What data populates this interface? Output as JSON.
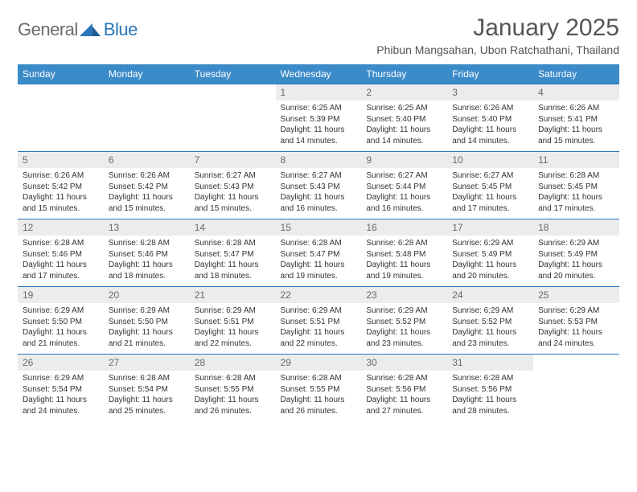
{
  "logo": {
    "general": "General",
    "blue": "Blue"
  },
  "title": "January 2025",
  "location": "Phibun Mangsahan, Ubon Ratchathani, Thailand",
  "colors": {
    "header_bg": "#3b8bc9",
    "header_text": "#ffffff",
    "daynum_bg": "#ececec",
    "daynum_text": "#6a6a6a",
    "border": "#2a76b8",
    "logo_gray": "#6b6b6b",
    "logo_blue": "#2a76b8",
    "body_text": "#333333"
  },
  "day_names": [
    "Sunday",
    "Monday",
    "Tuesday",
    "Wednesday",
    "Thursday",
    "Friday",
    "Saturday"
  ],
  "weeks": [
    [
      null,
      null,
      null,
      {
        "n": "1",
        "sr": "6:25 AM",
        "ss": "5:39 PM",
        "dl": "11 hours and 14 minutes."
      },
      {
        "n": "2",
        "sr": "6:25 AM",
        "ss": "5:40 PM",
        "dl": "11 hours and 14 minutes."
      },
      {
        "n": "3",
        "sr": "6:26 AM",
        "ss": "5:40 PM",
        "dl": "11 hours and 14 minutes."
      },
      {
        "n": "4",
        "sr": "6:26 AM",
        "ss": "5:41 PM",
        "dl": "11 hours and 15 minutes."
      }
    ],
    [
      {
        "n": "5",
        "sr": "6:26 AM",
        "ss": "5:42 PM",
        "dl": "11 hours and 15 minutes."
      },
      {
        "n": "6",
        "sr": "6:26 AM",
        "ss": "5:42 PM",
        "dl": "11 hours and 15 minutes."
      },
      {
        "n": "7",
        "sr": "6:27 AM",
        "ss": "5:43 PM",
        "dl": "11 hours and 15 minutes."
      },
      {
        "n": "8",
        "sr": "6:27 AM",
        "ss": "5:43 PM",
        "dl": "11 hours and 16 minutes."
      },
      {
        "n": "9",
        "sr": "6:27 AM",
        "ss": "5:44 PM",
        "dl": "11 hours and 16 minutes."
      },
      {
        "n": "10",
        "sr": "6:27 AM",
        "ss": "5:45 PM",
        "dl": "11 hours and 17 minutes."
      },
      {
        "n": "11",
        "sr": "6:28 AM",
        "ss": "5:45 PM",
        "dl": "11 hours and 17 minutes."
      }
    ],
    [
      {
        "n": "12",
        "sr": "6:28 AM",
        "ss": "5:46 PM",
        "dl": "11 hours and 17 minutes."
      },
      {
        "n": "13",
        "sr": "6:28 AM",
        "ss": "5:46 PM",
        "dl": "11 hours and 18 minutes."
      },
      {
        "n": "14",
        "sr": "6:28 AM",
        "ss": "5:47 PM",
        "dl": "11 hours and 18 minutes."
      },
      {
        "n": "15",
        "sr": "6:28 AM",
        "ss": "5:47 PM",
        "dl": "11 hours and 19 minutes."
      },
      {
        "n": "16",
        "sr": "6:28 AM",
        "ss": "5:48 PM",
        "dl": "11 hours and 19 minutes."
      },
      {
        "n": "17",
        "sr": "6:29 AM",
        "ss": "5:49 PM",
        "dl": "11 hours and 20 minutes."
      },
      {
        "n": "18",
        "sr": "6:29 AM",
        "ss": "5:49 PM",
        "dl": "11 hours and 20 minutes."
      }
    ],
    [
      {
        "n": "19",
        "sr": "6:29 AM",
        "ss": "5:50 PM",
        "dl": "11 hours and 21 minutes."
      },
      {
        "n": "20",
        "sr": "6:29 AM",
        "ss": "5:50 PM",
        "dl": "11 hours and 21 minutes."
      },
      {
        "n": "21",
        "sr": "6:29 AM",
        "ss": "5:51 PM",
        "dl": "11 hours and 22 minutes."
      },
      {
        "n": "22",
        "sr": "6:29 AM",
        "ss": "5:51 PM",
        "dl": "11 hours and 22 minutes."
      },
      {
        "n": "23",
        "sr": "6:29 AM",
        "ss": "5:52 PM",
        "dl": "11 hours and 23 minutes."
      },
      {
        "n": "24",
        "sr": "6:29 AM",
        "ss": "5:52 PM",
        "dl": "11 hours and 23 minutes."
      },
      {
        "n": "25",
        "sr": "6:29 AM",
        "ss": "5:53 PM",
        "dl": "11 hours and 24 minutes."
      }
    ],
    [
      {
        "n": "26",
        "sr": "6:29 AM",
        "ss": "5:54 PM",
        "dl": "11 hours and 24 minutes."
      },
      {
        "n": "27",
        "sr": "6:28 AM",
        "ss": "5:54 PM",
        "dl": "11 hours and 25 minutes."
      },
      {
        "n": "28",
        "sr": "6:28 AM",
        "ss": "5:55 PM",
        "dl": "11 hours and 26 minutes."
      },
      {
        "n": "29",
        "sr": "6:28 AM",
        "ss": "5:55 PM",
        "dl": "11 hours and 26 minutes."
      },
      {
        "n": "30",
        "sr": "6:28 AM",
        "ss": "5:56 PM",
        "dl": "11 hours and 27 minutes."
      },
      {
        "n": "31",
        "sr": "6:28 AM",
        "ss": "5:56 PM",
        "dl": "11 hours and 28 minutes."
      },
      null
    ]
  ],
  "labels": {
    "sunrise": "Sunrise:",
    "sunset": "Sunset:",
    "daylight": "Daylight:"
  }
}
